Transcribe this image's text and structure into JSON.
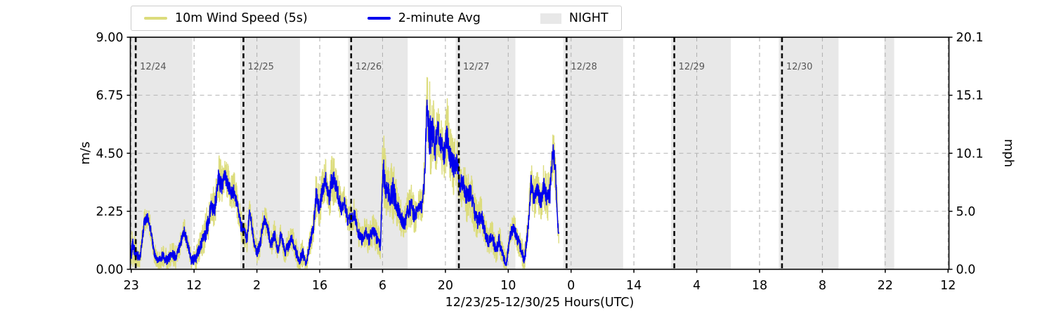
{
  "legend": {
    "items": [
      {
        "label": "10m Wind Speed (5s)",
        "swatch": "line",
        "color": "#dcdc7c"
      },
      {
        "label": "2-minute Avg",
        "swatch": "line",
        "color": "#0000ee"
      },
      {
        "label": "NIGHT",
        "swatch": "patch",
        "color": "#e8e8e8"
      }
    ]
  },
  "chart_data": {
    "type": "line",
    "title": "",
    "xlabel": "12/23/25-12/30/25  Hours(UTC)",
    "ylabel_left": "m/s",
    "ylabel_right": "mph",
    "x_unit": "hours relative to 12/24/25 00:00 UTC",
    "xlim": [
      -1.2,
      181.2
    ],
    "ylim_left": [
      0,
      9
    ],
    "ylim_right": [
      0,
      20.1
    ],
    "grid": {
      "color": "#b3b3b3",
      "dash": "5,5",
      "on": true
    },
    "x_ticks": {
      "hours": [
        -1,
        13,
        27,
        41,
        55,
        69,
        83,
        97,
        111,
        125,
        139,
        153,
        167,
        181
      ],
      "labels": [
        "23",
        "12",
        "2",
        "16",
        "6",
        "20",
        "10",
        "0",
        "14",
        "4",
        "18",
        "8",
        "22",
        "12"
      ]
    },
    "y_ticks_left": {
      "values": [
        0,
        2.25,
        4.5,
        6.75,
        9
      ],
      "labels": [
        "0.00",
        "2.25",
        "4.50",
        "6.75",
        "9.00"
      ]
    },
    "y_ticks_right": {
      "values": [
        0,
        2.25,
        4.5,
        6.75,
        9
      ],
      "labels": [
        "0.0",
        "5.0",
        "10.1",
        "15.1",
        "20.1"
      ]
    },
    "day_lines": {
      "hours": [
        0,
        24,
        48,
        72,
        96,
        120,
        144
      ],
      "labels": [
        "12/24",
        "12/25",
        "12/26",
        "12/27",
        "12/28",
        "12/29",
        "12/30"
      ],
      "color": "#0a0a0a",
      "label_color": "#575757"
    },
    "night_spans_hours": [
      [
        -1.2,
        12.6
      ],
      [
        23.3,
        36.6
      ],
      [
        47.3,
        60.6
      ],
      [
        71.3,
        84.6
      ],
      [
        95.3,
        108.6
      ],
      [
        119.3,
        132.6
      ],
      [
        143.3,
        156.6
      ],
      [
        166.8,
        169.0
      ]
    ],
    "night_color": "#e8e8e8",
    "data_start_hour": -1.1,
    "data_end_hour": 94.3,
    "keyframes_t_hours": [
      -1.1,
      -0.6,
      0.0,
      0.9,
      1.9,
      2.6,
      3.3,
      4.0,
      5.0,
      6.0,
      7.0,
      8.0,
      9.0,
      10.0,
      10.8,
      11.6,
      12.4,
      13.4,
      14.4,
      15.2,
      16.0,
      16.8,
      17.6,
      18.4,
      19.1,
      19.8,
      20.5,
      21.2,
      22.0,
      22.7,
      23.4,
      24.0,
      24.8,
      25.4,
      26.2,
      27.0,
      27.8,
      28.5,
      29.3,
      30.1,
      30.9,
      31.7,
      32.4,
      33.2,
      34.0,
      34.8,
      35.6,
      36.4,
      37.2,
      38.0,
      38.8,
      39.6,
      40.2,
      40.9,
      41.6,
      42.3,
      43.0,
      43.7,
      44.4,
      45.1,
      45.8,
      46.5,
      47.2,
      48.0,
      48.8,
      49.6,
      50.4,
      51.2,
      52.0,
      52.8,
      53.6,
      54.5,
      55.1,
      55.8,
      56.6,
      57.4,
      58.2,
      59.0,
      59.8,
      60.6,
      61.4,
      62.2,
      63.0,
      63.8,
      64.4,
      64.9,
      65.5,
      66.1,
      66.7,
      67.3,
      68.0,
      68.7,
      69.4,
      70.1,
      70.8,
      71.5,
      72.2,
      73.0,
      73.8,
      74.6,
      75.4,
      76.2,
      77.0,
      77.8,
      78.6,
      79.4,
      80.2,
      81.0,
      81.8,
      82.6,
      83.4,
      84.2,
      85.0,
      85.8,
      86.6,
      87.4,
      88.1,
      88.8,
      89.5,
      90.2,
      90.9,
      91.6,
      92.3,
      93.0,
      93.6,
      94.1,
      94.3
    ],
    "series": [
      {
        "name": "2-minute Avg",
        "color": "#0000ee",
        "values_ms": [
          0.5,
          0.9,
          0.6,
          0.4,
          1.8,
          2.0,
          1.6,
          0.7,
          0.3,
          0.5,
          0.3,
          0.6,
          0.4,
          1.0,
          1.5,
          0.9,
          0.3,
          0.4,
          0.9,
          1.2,
          1.6,
          2.4,
          2.3,
          3.5,
          3.2,
          3.6,
          3.3,
          2.9,
          3.0,
          2.4,
          1.7,
          1.5,
          1.1,
          2.3,
          1.2,
          0.6,
          1.0,
          1.9,
          1.7,
          0.9,
          1.3,
          0.7,
          1.4,
          0.6,
          0.9,
          1.2,
          0.7,
          0.3,
          0.6,
          0.2,
          1.0,
          1.6,
          2.9,
          2.3,
          3.0,
          3.5,
          2.7,
          3.3,
          3.4,
          2.8,
          2.3,
          2.6,
          1.9,
          2.0,
          2.1,
          1.4,
          1.1,
          1.4,
          1.1,
          1.5,
          1.2,
          0.9,
          3.9,
          3.0,
          2.8,
          3.0,
          2.4,
          2.0,
          1.7,
          2.2,
          2.4,
          2.0,
          2.5,
          2.4,
          3.6,
          6.4,
          5.0,
          5.3,
          4.6,
          5.4,
          4.8,
          4.4,
          5.2,
          4.3,
          3.9,
          4.2,
          3.2,
          3.3,
          2.7,
          2.9,
          2.2,
          1.8,
          2.1,
          1.4,
          1.0,
          1.3,
          0.7,
          1.1,
          0.5,
          0.2,
          1.3,
          1.6,
          1.2,
          0.8,
          0.3,
          1.5,
          3.3,
          2.6,
          3.1,
          2.5,
          3.2,
          2.7,
          2.9,
          4.7,
          3.5,
          1.6,
          1.3
        ]
      },
      {
        "name": "10m Wind Speed (5s)",
        "color": "#dcdc7c",
        "note": "5-second samples; rendered as noisy band between lull and gust envelope",
        "gust_values_ms": [
          1.0,
          1.9,
          1.2,
          0.9,
          2.3,
          2.5,
          2.1,
          1.2,
          0.7,
          1.0,
          0.8,
          1.1,
          0.9,
          1.5,
          2.0,
          1.4,
          0.8,
          0.9,
          1.5,
          1.9,
          2.6,
          3.1,
          3.3,
          4.5,
          4.2,
          4.4,
          4.1,
          3.7,
          3.8,
          3.2,
          2.4,
          2.1,
          1.7,
          2.8,
          1.8,
          1.1,
          1.6,
          2.5,
          2.3,
          1.5,
          1.9,
          1.2,
          1.9,
          1.1,
          1.5,
          1.7,
          1.3,
          0.8,
          1.2,
          0.6,
          1.6,
          2.3,
          3.8,
          3.2,
          3.9,
          4.4,
          3.6,
          4.7,
          4.3,
          3.7,
          3.0,
          3.3,
          2.6,
          2.6,
          2.8,
          2.0,
          1.7,
          2.1,
          1.8,
          2.2,
          1.9,
          1.5,
          5.6,
          4.3,
          3.9,
          4.5,
          3.3,
          2.8,
          2.5,
          3.0,
          3.4,
          2.8,
          3.2,
          3.1,
          4.6,
          7.6,
          7.4,
          6.9,
          6.2,
          6.5,
          6.0,
          5.6,
          6.8,
          5.5,
          5.2,
          5.3,
          4.3,
          4.2,
          3.8,
          4.0,
          3.1,
          2.6,
          2.9,
          2.1,
          1.6,
          2.0,
          1.3,
          1.8,
          1.0,
          0.6,
          1.9,
          2.2,
          1.8,
          1.4,
          0.9,
          2.2,
          4.2,
          3.5,
          3.9,
          3.4,
          4.1,
          3.7,
          4.0,
          5.8,
          4.6,
          2.1,
          1.7
        ]
      }
    ],
    "render_hints": {
      "step_hours": 0.04,
      "yellow_band_low_factor": 0.85,
      "yellow_band_high_factor": 1.0,
      "blue_band_low_factor": 0.34,
      "blue_band_high_factor": 0.42,
      "min_value": 0.02
    }
  }
}
